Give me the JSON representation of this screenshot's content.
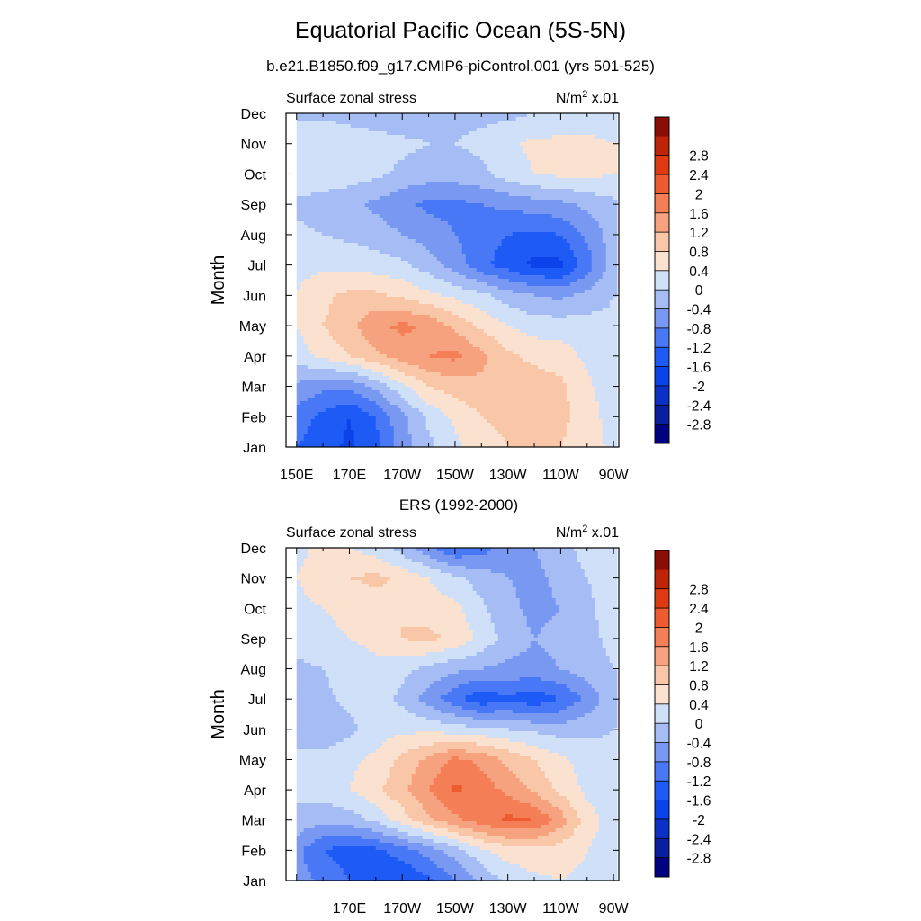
{
  "header": {
    "title": "Equatorial Pacific Ocean (5S-5N)",
    "subtitle": "b.e21.B1850.f09_g17.CMIP6-piControl.001 (yrs 501-525)"
  },
  "colorbar": {
    "levels": [
      -2.8,
      -2.4,
      -2,
      -1.6,
      -1.2,
      -0.8,
      -0.4,
      0,
      0.4,
      0.8,
      1.2,
      1.6,
      2,
      2.4,
      2.8
    ],
    "labels": [
      "-2.8",
      "-2.4",
      "-2",
      "-1.6",
      "-1.2",
      "-0.8",
      "-0.4",
      "0",
      "0.4",
      "0.8",
      "1.2",
      "1.6",
      "2",
      "2.4",
      "2.8"
    ],
    "colors": [
      "#000080",
      "#0a1ea0",
      "#0a30c8",
      "#0c42ea",
      "#1e5af5",
      "#4878f5",
      "#7898f2",
      "#a5bdf4",
      "#cfe0f8",
      "#fbe2d0",
      "#f9c6a8",
      "#f7a27e",
      "#f47f57",
      "#ef5b30",
      "#e03a12",
      "#bf2408",
      "#8c0d05"
    ]
  },
  "chart_data": [
    {
      "type": "heatmap",
      "panel_title": "",
      "left_string": "Surface zonal stress",
      "right_string": "N/m² x.01",
      "right_base": "N/m",
      "right_sup": "2",
      "right_tail": " x.01",
      "ylabel": "Month",
      "x_range": [
        146,
        272
      ],
      "x_ticks": [
        150,
        170,
        190,
        210,
        230,
        250,
        270
      ],
      "x_tick_labels": [
        "150E",
        "170E",
        "170W",
        "150W",
        "130W",
        "110W",
        "90W"
      ],
      "y_ticks": [
        1,
        2,
        3,
        4,
        5,
        6,
        7,
        8,
        9,
        10,
        11,
        12
      ],
      "y_tick_labels": [
        "Jan",
        "Feb",
        "Mar",
        "Apr",
        "May",
        "Jun",
        "Jul",
        "Aug",
        "Sep",
        "Oct",
        "Nov",
        "Dec"
      ],
      "x": [
        150,
        160,
        170,
        180,
        190,
        200,
        210,
        220,
        230,
        240,
        250,
        260,
        270
      ],
      "y": [
        1,
        2,
        3,
        4,
        5,
        6,
        7,
        8,
        9,
        10,
        11,
        12
      ],
      "z": [
        [
          -1.2,
          -1.4,
          -1.7,
          -1.3,
          -0.6,
          -0.1,
          0.3,
          0.6,
          0.8,
          0.9,
          0.8,
          0.6,
          0.3
        ],
        [
          -1.0,
          -1.3,
          -1.6,
          -1.2,
          -0.5,
          0.1,
          0.5,
          0.8,
          0.9,
          1.0,
          0.9,
          0.6,
          0.2
        ],
        [
          -0.5,
          -0.7,
          -0.7,
          -0.3,
          0.3,
          0.8,
          1.0,
          1.1,
          1.0,
          1.0,
          0.9,
          0.5,
          0.1
        ],
        [
          0.2,
          0.5,
          0.8,
          1.1,
          1.4,
          1.6,
          1.7,
          1.3,
          0.9,
          0.7,
          0.6,
          0.3,
          0.1
        ],
        [
          0.4,
          0.8,
          1.1,
          1.5,
          1.7,
          1.5,
          1.1,
          0.7,
          0.4,
          0.2,
          0.2,
          0.2,
          0.1
        ],
        [
          0.4,
          0.7,
          0.9,
          0.9,
          0.7,
          0.5,
          0.3,
          0.1,
          -0.2,
          -0.4,
          -0.5,
          -0.3,
          0.0
        ],
        [
          0.3,
          0.3,
          0.3,
          0.2,
          0.1,
          -0.2,
          -0.6,
          -1.1,
          -1.4,
          -1.7,
          -1.7,
          -1.0,
          -0.2
        ],
        [
          0.1,
          0.0,
          -0.1,
          -0.2,
          -0.4,
          -0.6,
          -0.8,
          -1.0,
          -1.2,
          -1.3,
          -1.2,
          -0.7,
          -0.2
        ],
        [
          -0.1,
          -0.2,
          -0.3,
          -0.5,
          -0.7,
          -0.9,
          -0.9,
          -0.8,
          -0.7,
          -0.6,
          -0.5,
          -0.3,
          -0.1
        ],
        [
          0.3,
          0.3,
          0.2,
          0.1,
          -0.1,
          -0.2,
          -0.2,
          -0.1,
          0.2,
          0.4,
          0.5,
          0.5,
          0.4
        ],
        [
          0.3,
          0.4,
          0.3,
          0.2,
          0.1,
          0.0,
          0.0,
          0.1,
          0.3,
          0.5,
          0.5,
          0.5,
          0.4
        ],
        [
          -0.1,
          -0.1,
          -0.2,
          -0.3,
          -0.3,
          -0.2,
          -0.1,
          -0.1,
          -0.1,
          0.0,
          0.1,
          0.2,
          0.1
        ]
      ]
    },
    {
      "type": "heatmap",
      "panel_title": "ERS (1992-2000)",
      "left_string": "Surface zonal stress",
      "right_string": "N/m² x.01",
      "right_base": "N/m",
      "right_sup": "2",
      "right_tail": " x.01",
      "ylabel": "Month",
      "x_range": [
        146,
        272
      ],
      "x_ticks": [
        150,
        170,
        190,
        210,
        230,
        250,
        270
      ],
      "x_tick_labels": [
        "",
        "170E",
        "170W",
        "150W",
        "130W",
        "110W",
        "90W"
      ],
      "y_ticks": [
        1,
        2,
        3,
        4,
        5,
        6,
        7,
        8,
        9,
        10,
        11,
        12
      ],
      "y_tick_labels": [
        "Jan",
        "Feb",
        "Mar",
        "Apr",
        "May",
        "Jun",
        "Jul",
        "Aug",
        "Sep",
        "Oct",
        "Nov",
        "Dec"
      ],
      "x": [
        150,
        160,
        170,
        180,
        190,
        200,
        210,
        220,
        230,
        240,
        250,
        260,
        270
      ],
      "y": [
        1,
        2,
        3,
        4,
        5,
        6,
        7,
        8,
        9,
        10,
        11,
        12
      ],
      "z": [
        [
          -0.6,
          -0.9,
          -1.2,
          -1.4,
          -1.6,
          -1.3,
          -0.8,
          -0.3,
          0.1,
          0.3,
          0.4,
          0.3,
          0.2
        ],
        [
          -0.7,
          -1.2,
          -1.4,
          -1.3,
          -1.0,
          -0.6,
          -0.2,
          0.3,
          0.6,
          0.7,
          0.6,
          0.4,
          0.2
        ],
        [
          -0.1,
          -0.3,
          -0.2,
          0.1,
          0.6,
          1.1,
          1.5,
          1.8,
          2.1,
          2.0,
          1.4,
          0.6,
          0.2
        ],
        [
          0.1,
          0.2,
          0.4,
          0.7,
          1.1,
          1.6,
          2.1,
          1.8,
          1.5,
          1.1,
          0.7,
          0.3,
          0.1
        ],
        [
          0.2,
          0.2,
          0.3,
          0.5,
          0.9,
          1.3,
          1.7,
          1.5,
          1.1,
          0.8,
          0.5,
          0.2,
          0.1
        ],
        [
          -0.3,
          -0.4,
          -0.1,
          0.2,
          0.3,
          0.3,
          0.2,
          0.1,
          0.0,
          -0.1,
          -0.2,
          -0.1,
          0.0
        ],
        [
          -0.1,
          -0.1,
          0.1,
          0.2,
          -0.1,
          -0.6,
          -1.1,
          -1.5,
          -1.3,
          -1.5,
          -1.2,
          -0.7,
          -0.1
        ],
        [
          -0.1,
          0.0,
          0.2,
          0.3,
          0.1,
          -0.1,
          -0.3,
          -0.4,
          -0.5,
          -0.5,
          -0.4,
          -0.2,
          0.0
        ],
        [
          0.2,
          0.3,
          0.4,
          0.5,
          0.8,
          0.9,
          0.7,
          0.3,
          -0.2,
          -0.4,
          -0.3,
          -0.1,
          0.1
        ],
        [
          0.3,
          0.4,
          0.5,
          0.6,
          0.8,
          0.6,
          0.5,
          0.1,
          -0.3,
          -0.5,
          -0.4,
          -0.1,
          0.2
        ],
        [
          0.4,
          0.6,
          0.8,
          0.9,
          0.7,
          0.4,
          0.1,
          -0.2,
          -0.4,
          -0.5,
          -0.3,
          0.0,
          0.2
        ],
        [
          0.3,
          0.5,
          0.4,
          0.2,
          -0.2,
          -0.7,
          -1.2,
          -1.0,
          -0.6,
          -0.4,
          -0.2,
          0.2,
          0.3
        ]
      ]
    }
  ]
}
